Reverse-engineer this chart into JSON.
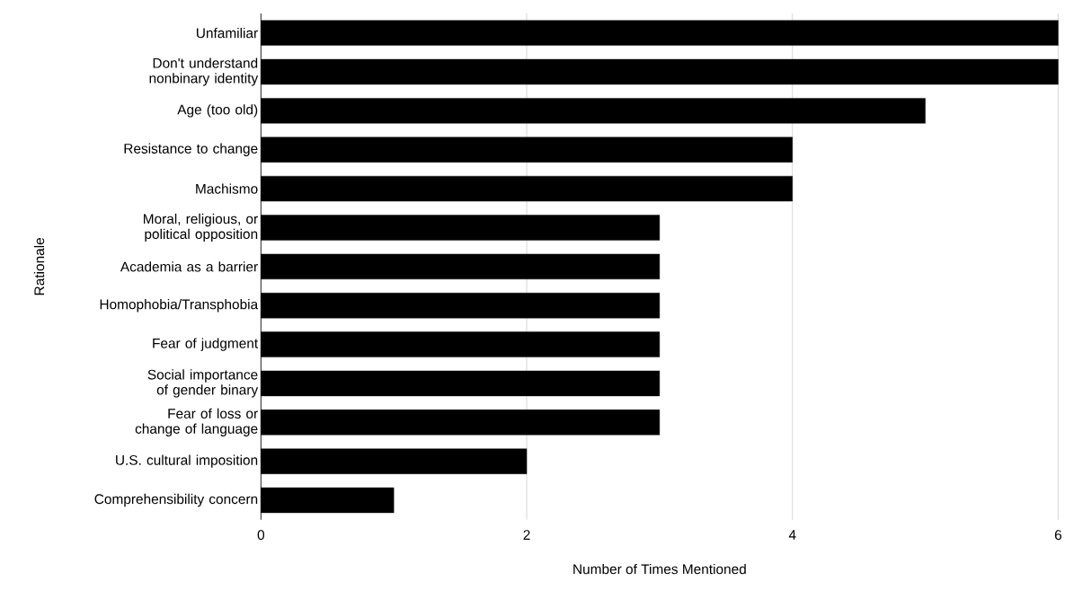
{
  "chart_data": {
    "type": "bar",
    "orientation": "horizontal",
    "xlabel": "Number of Times Mentioned",
    "ylabel": "Rationale",
    "categories": [
      "Unfamiliar",
      "Don't understand nonbinary identity",
      "Age (too old)",
      "Resistance to change",
      "Machismo",
      "Moral, religious, or political opposition",
      "Academia as a barrier",
      "Homophobia/Transphobia",
      "Fear of judgment",
      "Social importance of gender binary",
      "Fear of loss or change of language",
      "U.S. cultural imposition",
      "Comprehensibility concern"
    ],
    "values": [
      6,
      6,
      5,
      4,
      4,
      3,
      3,
      3,
      3,
      3,
      3,
      2,
      1
    ],
    "color": "#000000",
    "xlim": [
      0,
      6
    ],
    "xticks": [
      0,
      2,
      4,
      6
    ],
    "grid": "x"
  }
}
